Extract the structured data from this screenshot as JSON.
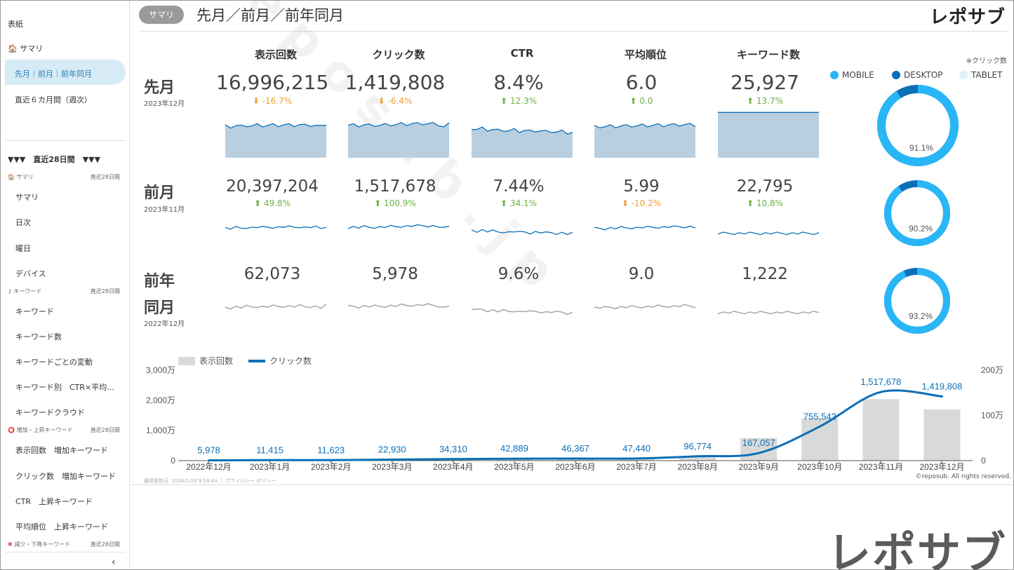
{
  "sidebar": {
    "top_items": [
      "表紙",
      "サマリ",
      "先月｜前月｜前年同月",
      "直近６カ月間（週次）"
    ],
    "heading": "▼▼▼　直近28日間　▼▼▼",
    "sections": [
      {
        "icon": "home-icon",
        "label": "サマリ",
        "right": "直近28日間",
        "items": [
          "サマリ",
          "日次",
          "曜日",
          "デバイス"
        ]
      },
      {
        "icon": "key-icon",
        "label": "キーワード",
        "right": "直近28日間",
        "items": [
          "キーワード",
          "キーワード数",
          "キーワードごとの変動",
          "キーワード別　CTR×平均...",
          "キーワードクラウド"
        ]
      },
      {
        "icon": "circle-icon",
        "label": "増加・上昇キーワード",
        "right": "直近28日間",
        "items": [
          "表示回数　増加キーワード",
          "クリック数　増加キーワード",
          "CTR　上昇キーワード",
          "平均順位　上昇キーワード"
        ]
      },
      {
        "icon": "cross-icon",
        "label": "減少・下降キーワード",
        "right": "直近28日間",
        "items": []
      }
    ],
    "collapse": "‹"
  },
  "header": {
    "pill": "サマリ",
    "title": "先月／前月／前年同月",
    "logo": "レポサブ"
  },
  "metrics": {
    "columns": [
      "表示回数",
      "クリック数",
      "CTR",
      "平均順位",
      "キーワード数"
    ],
    "rows": [
      {
        "label": "先月",
        "sub": "2023年12月",
        "values": [
          "16,996,215",
          "1,419,808",
          "8.4%",
          "6.0",
          "25,927"
        ],
        "changes": [
          {
            "text": "-16.7%",
            "dir": "down"
          },
          {
            "text": "-6.4%",
            "dir": "down"
          },
          {
            "text": "12.3%",
            "dir": "up"
          },
          {
            "text": "0.0",
            "dir": "up"
          },
          {
            "text": "13.7%",
            "dir": "up"
          }
        ]
      },
      {
        "label": "前月",
        "sub": "2023年11月",
        "values": [
          "20,397,204",
          "1,517,678",
          "7.44%",
          "5.99",
          "22,795"
        ],
        "changes": [
          {
            "text": "49.8%",
            "dir": "up"
          },
          {
            "text": "100.9%",
            "dir": "up"
          },
          {
            "text": "34.1%",
            "dir": "up"
          },
          {
            "text": "-10.2%",
            "dir": "down"
          },
          {
            "text": "10.8%",
            "dir": "up"
          }
        ]
      },
      {
        "label": "前年同月",
        "label_lines": [
          "前年",
          "同月"
        ],
        "sub": "2022年12月",
        "values": [
          "62,073",
          "5,978",
          "9.6%",
          "9.0",
          "1,222"
        ],
        "changes": []
      }
    ]
  },
  "device": {
    "note": "※クリック数",
    "legend": [
      {
        "label": "MOBILE",
        "color": "#29b6f6"
      },
      {
        "label": "DESKTOP",
        "color": "#0b6fb8"
      },
      {
        "label": "TABLET",
        "color": "#dff1fb"
      }
    ],
    "donuts": [
      {
        "mobile": 91.1,
        "label": "91.1%"
      },
      {
        "mobile": 90.2,
        "label": "90.2%"
      },
      {
        "mobile": 93.2,
        "label": "93.2%"
      }
    ]
  },
  "chart_data": {
    "type": "bar",
    "legend": [
      "表示回数",
      "クリック数"
    ],
    "categories": [
      "2022年12月",
      "2023年1月",
      "2023年2月",
      "2023年3月",
      "2023年4月",
      "2023年5月",
      "2023年6月",
      "2023年7月",
      "2023年8月",
      "2023年9月",
      "2023年10月",
      "2023年11月",
      "2023年12月"
    ],
    "series": [
      {
        "name": "表示回数",
        "type": "bar",
        "axis": "left",
        "values": [
          62073,
          150000,
          160000,
          280000,
          420000,
          500000,
          550000,
          600000,
          1200000,
          7500000,
          14000000,
          20397204,
          16996215
        ]
      },
      {
        "name": "クリック数",
        "type": "line",
        "axis": "right",
        "values": [
          5978,
          11415,
          11623,
          22930,
          34310,
          42889,
          46367,
          47440,
          96774,
          167057,
          755542,
          1517678,
          1419808
        ],
        "labels": [
          "5,978",
          "11,415",
          "11,623",
          "22,930",
          "34,310",
          "42,889",
          "46,367",
          "47,440",
          "96,774",
          "167,057",
          "755,542",
          "1,517,678",
          "1,419,808"
        ]
      }
    ],
    "left_axis": {
      "ticks": [
        "3,000万",
        "2,000万",
        "1,000万",
        "0"
      ],
      "ylim": [
        0,
        30000000
      ]
    },
    "right_axis": {
      "ticks": [
        "200万",
        "100万",
        "0"
      ],
      "ylim": [
        0,
        2000000
      ]
    }
  },
  "footer": {
    "updated": "最終更新日: 2024/1/20 9:16:44 ｜ プライバシー ポリシー",
    "copyright": "©reposub. All rights reserved."
  },
  "bottom_logo": "レポサブ",
  "colors": {
    "accent": "#0b6fb8",
    "area": "#b9cfe0",
    "bar": "#d9d9d9",
    "mobile": "#29b6f6",
    "desktop": "#0b6fb8"
  }
}
